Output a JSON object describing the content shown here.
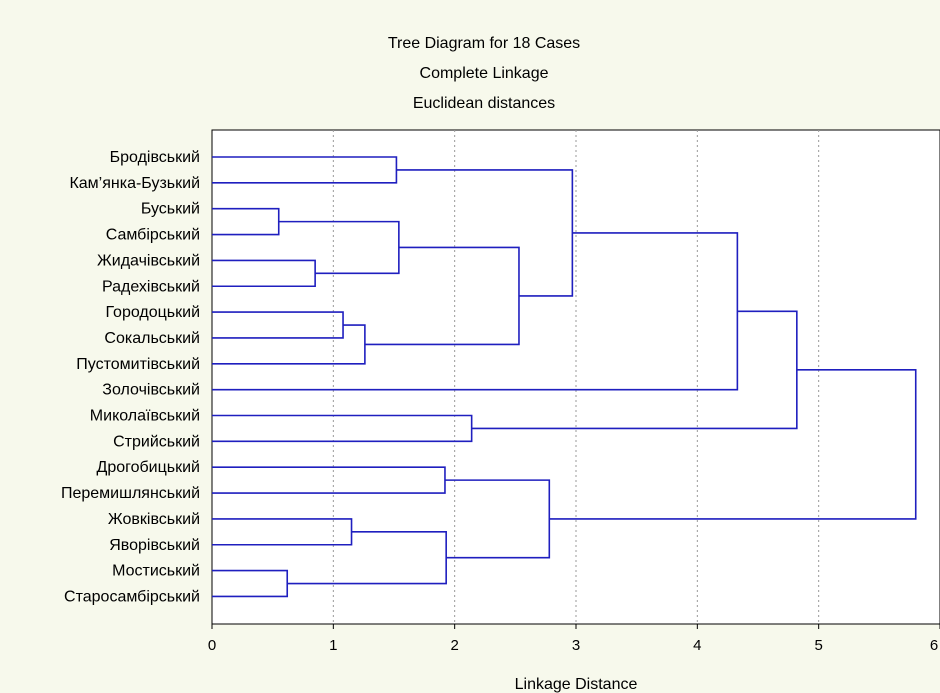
{
  "chart_data": {
    "type": "dendrogram",
    "title": [
      "Tree Diagram for 18 Cases",
      "Complete Linkage",
      "Euclidean distances"
    ],
    "xlabel": "Linkage Distance",
    "xlim": [
      0,
      6
    ],
    "xticks": [
      0,
      1,
      2,
      3,
      4,
      5,
      6
    ],
    "grid": "vertical dashed",
    "colors": {
      "plot_bg": "#ffffff",
      "page_bg": "#f7f9ec",
      "tree": "#1f1fbf",
      "grid": "#9a9a9a"
    },
    "cases": [
      "Бродівський",
      "Кам’янка-Бузький",
      "Буський",
      "Самбірський",
      "Жидачівський",
      "Радехівський",
      "Городоцький",
      "Сокальський",
      "Пустомитівський",
      "Золочівський",
      "Миколаївський",
      "Стрийський",
      "Дрогобицький",
      "Перемишлянський",
      "Жовківський",
      "Яворівський",
      "Мостиський",
      "Старосамбірський"
    ],
    "merges": [
      {
        "id": "n1",
        "left": 0,
        "right": 1,
        "height": 1.52
      },
      {
        "id": "n2",
        "left": 2,
        "right": 3,
        "height": 0.55
      },
      {
        "id": "n3",
        "left": 4,
        "right": 5,
        "height": 0.85
      },
      {
        "id": "n4",
        "left": "n2",
        "right": "n3",
        "height": 1.54
      },
      {
        "id": "n5",
        "left": 6,
        "right": 7,
        "height": 1.08
      },
      {
        "id": "n6",
        "left": "n5",
        "right": 8,
        "height": 1.26
      },
      {
        "id": "n7",
        "left": "n4",
        "right": "n6",
        "height": 2.53
      },
      {
        "id": "n8",
        "left": "n1",
        "right": "n7",
        "height": 2.97
      },
      {
        "id": "n9",
        "left": "n8",
        "right": 9,
        "height": 4.33
      },
      {
        "id": "n10",
        "left": 10,
        "right": 11,
        "height": 2.14
      },
      {
        "id": "n11",
        "left": "n9",
        "right": "n10",
        "height": 4.82
      },
      {
        "id": "n12",
        "left": 12,
        "right": 13,
        "height": 1.92
      },
      {
        "id": "n13",
        "left": 14,
        "right": 15,
        "height": 1.15
      },
      {
        "id": "n14",
        "left": 16,
        "right": 17,
        "height": 0.62
      },
      {
        "id": "n15",
        "left": "n13",
        "right": "n14",
        "height": 1.93
      },
      {
        "id": "n16",
        "left": "n12",
        "right": "n15",
        "height": 2.78
      },
      {
        "id": "n17",
        "left": "n11",
        "right": "n16",
        "height": 5.8
      }
    ]
  }
}
